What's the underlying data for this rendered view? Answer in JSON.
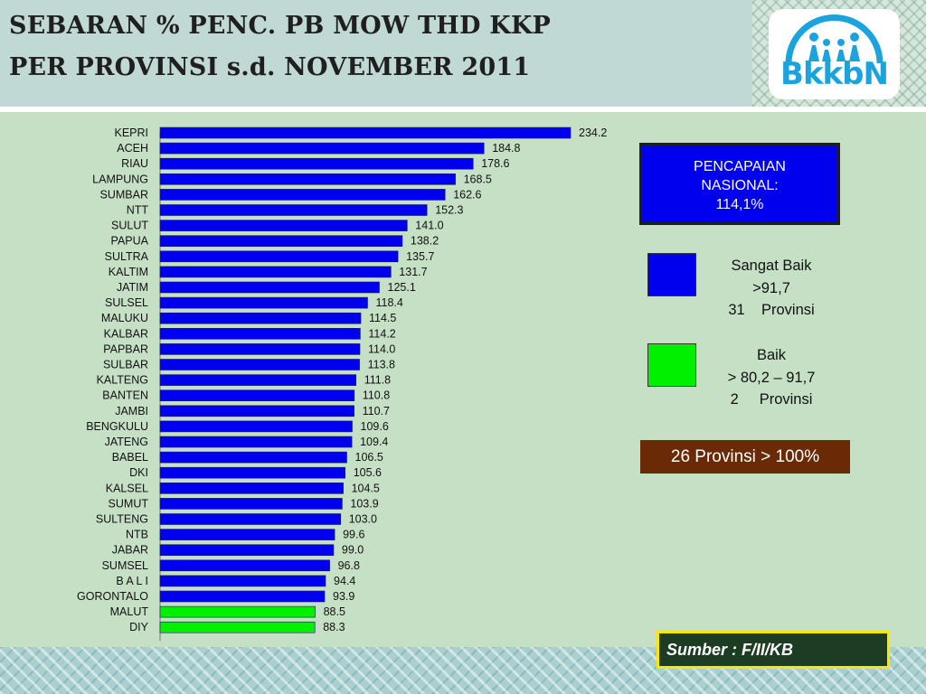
{
  "header": {
    "title_line1": "SEBARAN % PENC. PB MOW THD KKP",
    "title_line2": "PER PROVINSI s.d. NOVEMBER 2011",
    "logo_text": "BkkbN"
  },
  "national": {
    "line1": "PENCAPAIAN",
    "line2": "NASIONAL:",
    "line3": "114,1%"
  },
  "legend": [
    {
      "color": "#0000ee",
      "line1": "Sangat Baik",
      "line2": ">91,7",
      "line3": "31    Provinsi"
    },
    {
      "color": "#00f000",
      "line1": "Baik",
      "line2": "> 80,2 – 91,7",
      "line3": "2     Provinsi"
    }
  ],
  "provinces_over_100": "26 Provinsi > 100%",
  "source": "Sumber : F/II/KB",
  "colors": {
    "very_good": "#0000ee",
    "good": "#00f000"
  },
  "chart_data": {
    "type": "bar",
    "orientation": "horizontal",
    "xlim": [
      0,
      234.2
    ],
    "categories": [
      "KEPRI",
      "ACEH",
      "RIAU",
      "LAMPUNG",
      "SUMBAR",
      "NTT",
      "SULUT",
      "PAPUA",
      "SULTRA",
      "KALTIM",
      "JATIM",
      "SULSEL",
      "MALUKU",
      "KALBAR",
      "PAPBAR",
      "SULBAR",
      "KALTENG",
      "BANTEN",
      "JAMBI",
      "BENGKULU",
      "JATENG",
      "BABEL",
      "DKI",
      "KALSEL",
      "SUMUT",
      "SULTENG",
      "NTB",
      "JABAR",
      "SUMSEL",
      "B A L I",
      "GORONTALO",
      "MALUT",
      "DIY"
    ],
    "values": [
      234.2,
      184.8,
      178.6,
      168.5,
      162.6,
      152.3,
      141.0,
      138.2,
      135.7,
      131.7,
      125.1,
      118.4,
      114.5,
      114.2,
      114.0,
      113.8,
      111.8,
      110.8,
      110.7,
      109.6,
      109.4,
      106.5,
      105.6,
      104.5,
      103.9,
      103.0,
      99.6,
      99.0,
      96.8,
      94.4,
      93.9,
      88.5,
      88.3
    ],
    "value_labels": [
      "234.2",
      "184.8",
      "178.6",
      "168.5",
      "162.6",
      "152.3",
      "141.0",
      "138.2",
      "135.7",
      "131.7",
      "125.1",
      "118.4",
      "114.5",
      "114.2",
      "114.0",
      "113.8",
      "111.8",
      "110.8",
      "110.7",
      "109.6",
      "109.4",
      "106.5",
      "105.6",
      "104.5",
      "103.9",
      "103.0",
      "99.6",
      "99.0",
      "96.8",
      "94.4",
      "93.9",
      "88.5",
      "88.3"
    ],
    "bar_colors": [
      "#0000ee",
      "#0000ee",
      "#0000ee",
      "#0000ee",
      "#0000ee",
      "#0000ee",
      "#0000ee",
      "#0000ee",
      "#0000ee",
      "#0000ee",
      "#0000ee",
      "#0000ee",
      "#0000ee",
      "#0000ee",
      "#0000ee",
      "#0000ee",
      "#0000ee",
      "#0000ee",
      "#0000ee",
      "#0000ee",
      "#0000ee",
      "#0000ee",
      "#0000ee",
      "#0000ee",
      "#0000ee",
      "#0000ee",
      "#0000ee",
      "#0000ee",
      "#0000ee",
      "#0000ee",
      "#0000ee",
      "#00f000",
      "#00f000"
    ],
    "grid": false,
    "data_labels": true
  }
}
